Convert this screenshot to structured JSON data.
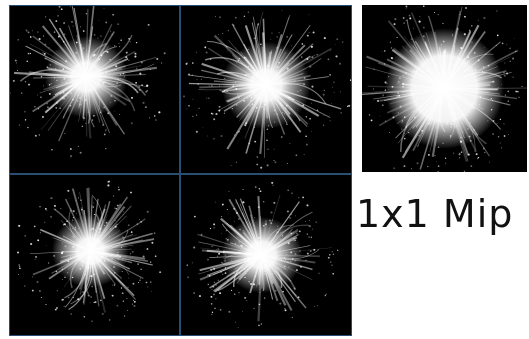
{
  "label": "1x1 Mip",
  "colors": {
    "background": "#ffffff",
    "panel": "#000000",
    "divider": "#2a4d73",
    "burst": "#ffffff"
  }
}
